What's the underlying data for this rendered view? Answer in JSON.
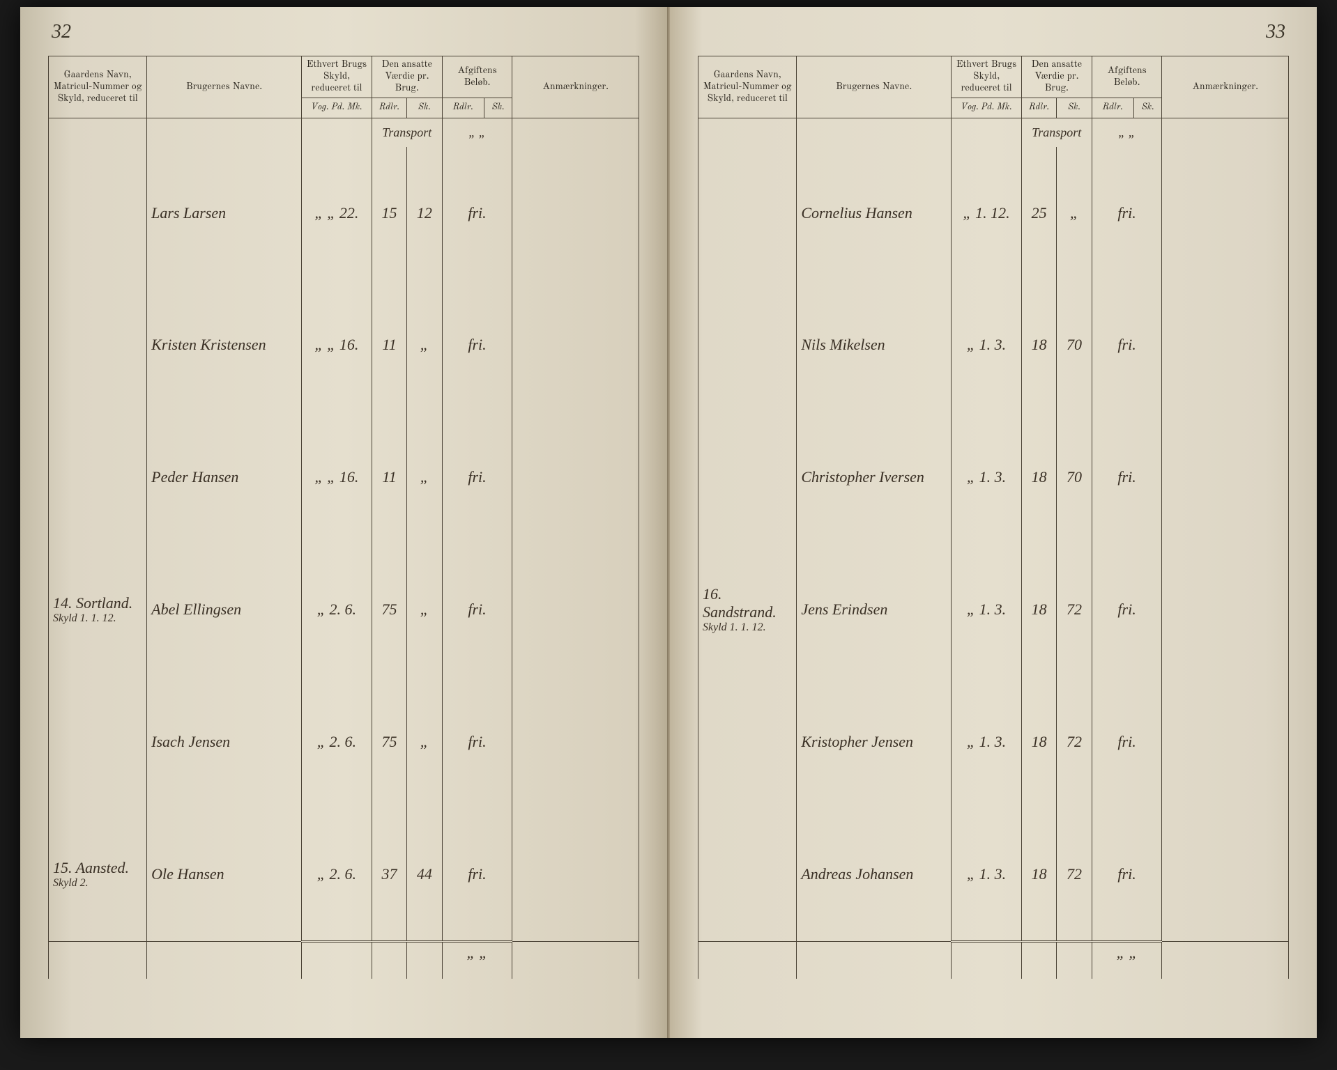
{
  "pageLeft": {
    "number": "32",
    "headers": {
      "gaard": "Gaardens Navn, Matricul-Nummer og Skyld, reduceret til",
      "bruger": "Brugernes Navne.",
      "skyld": "Ethvert Brugs Skyld, reduceret til",
      "vaerdi": "Den ansatte Værdie pr. Brug.",
      "afgift": "Afgiftens Beløb.",
      "anm": "Anmærkninger."
    },
    "subheaders": {
      "skyld": "Vog. Pd. Mk.",
      "vaerdi_rdlr": "Rdlr.",
      "vaerdi_sk": "Sk.",
      "afgift_rdlr": "Rdlr.",
      "afgift_sk": "Sk."
    },
    "transport": {
      "label": "Transport",
      "marks": "„  „"
    },
    "rows": [
      {
        "gaard": "",
        "bruger": "Lars Larsen",
        "skyld": "„  „  22.",
        "vaerdi_rdlr": "15",
        "vaerdi_sk": "12",
        "afgift": "fri.",
        "anm": ""
      },
      {
        "gaard": "",
        "bruger": "Kristen Kristensen",
        "skyld": "„  „  16.",
        "vaerdi_rdlr": "11",
        "vaerdi_sk": "„",
        "afgift": "fri.",
        "anm": ""
      },
      {
        "gaard": "",
        "bruger": "Peder Hansen",
        "skyld": "„  „  16.",
        "vaerdi_rdlr": "11",
        "vaerdi_sk": "„",
        "afgift": "fri.",
        "anm": ""
      },
      {
        "gaard": "14. Sortland.",
        "gaard_sub": "Skyld 1. 1. 12.",
        "bruger": "Abel Ellingsen",
        "skyld": "„  2.  6.",
        "vaerdi_rdlr": "75",
        "vaerdi_sk": "„",
        "afgift": "fri.",
        "anm": ""
      },
      {
        "gaard": "",
        "bruger": "Isach Jensen",
        "skyld": "„  2.  6.",
        "vaerdi_rdlr": "75",
        "vaerdi_sk": "„",
        "afgift": "fri.",
        "anm": ""
      },
      {
        "gaard": "15. Aansted.",
        "gaard_sub": "Skyld 2.",
        "bruger": "Ole Hansen",
        "skyld": "„  2.  6.",
        "vaerdi_rdlr": "37",
        "vaerdi_sk": "44",
        "afgift": "fri.",
        "anm": ""
      }
    ],
    "footer": "„  „"
  },
  "pageRight": {
    "number": "33",
    "headers": {
      "gaard": "Gaardens Navn, Matricul-Nummer og Skyld, reduceret til",
      "bruger": "Brugernes Navne.",
      "skyld": "Ethvert Brugs Skyld, reduceret til",
      "vaerdi": "Den ansatte Værdie pr. Brug.",
      "afgift": "Afgiftens Beløb.",
      "anm": "Anmærkninger."
    },
    "subheaders": {
      "skyld": "Vog. Pd. Mk.",
      "vaerdi_rdlr": "Rdlr.",
      "vaerdi_sk": "Sk.",
      "afgift_rdlr": "Rdlr.",
      "afgift_sk": "Sk."
    },
    "transport": {
      "label": "Transport",
      "marks": "„  „"
    },
    "rows": [
      {
        "gaard": "",
        "bruger": "Cornelius Hansen",
        "skyld": "„  1.  12.",
        "vaerdi_rdlr": "25",
        "vaerdi_sk": "„",
        "afgift": "fri.",
        "anm": ""
      },
      {
        "gaard": "",
        "bruger": "Nils Mikelsen",
        "skyld": "„  1.  3.",
        "vaerdi_rdlr": "18",
        "vaerdi_sk": "70",
        "afgift": "fri.",
        "anm": ""
      },
      {
        "gaard": "",
        "bruger": "Christopher Iversen",
        "skyld": "„  1.  3.",
        "vaerdi_rdlr": "18",
        "vaerdi_sk": "70",
        "afgift": "fri.",
        "anm": ""
      },
      {
        "gaard": "16. Sandstrand.",
        "gaard_sub": "Skyld 1. 1. 12.",
        "bruger": "Jens Erindsen",
        "skyld": "„  1.  3.",
        "vaerdi_rdlr": "18",
        "vaerdi_sk": "72",
        "afgift": "fri.",
        "anm": ""
      },
      {
        "gaard": "",
        "bruger": "Kristopher Jensen",
        "skyld": "„  1.  3.",
        "vaerdi_rdlr": "18",
        "vaerdi_sk": "72",
        "afgift": "fri.",
        "anm": ""
      },
      {
        "gaard": "",
        "bruger": "Andreas Johansen",
        "skyld": "„  1.  3.",
        "vaerdi_rdlr": "18",
        "vaerdi_sk": "72",
        "afgift": "fri.",
        "anm": ""
      }
    ],
    "footer": "„  „"
  }
}
